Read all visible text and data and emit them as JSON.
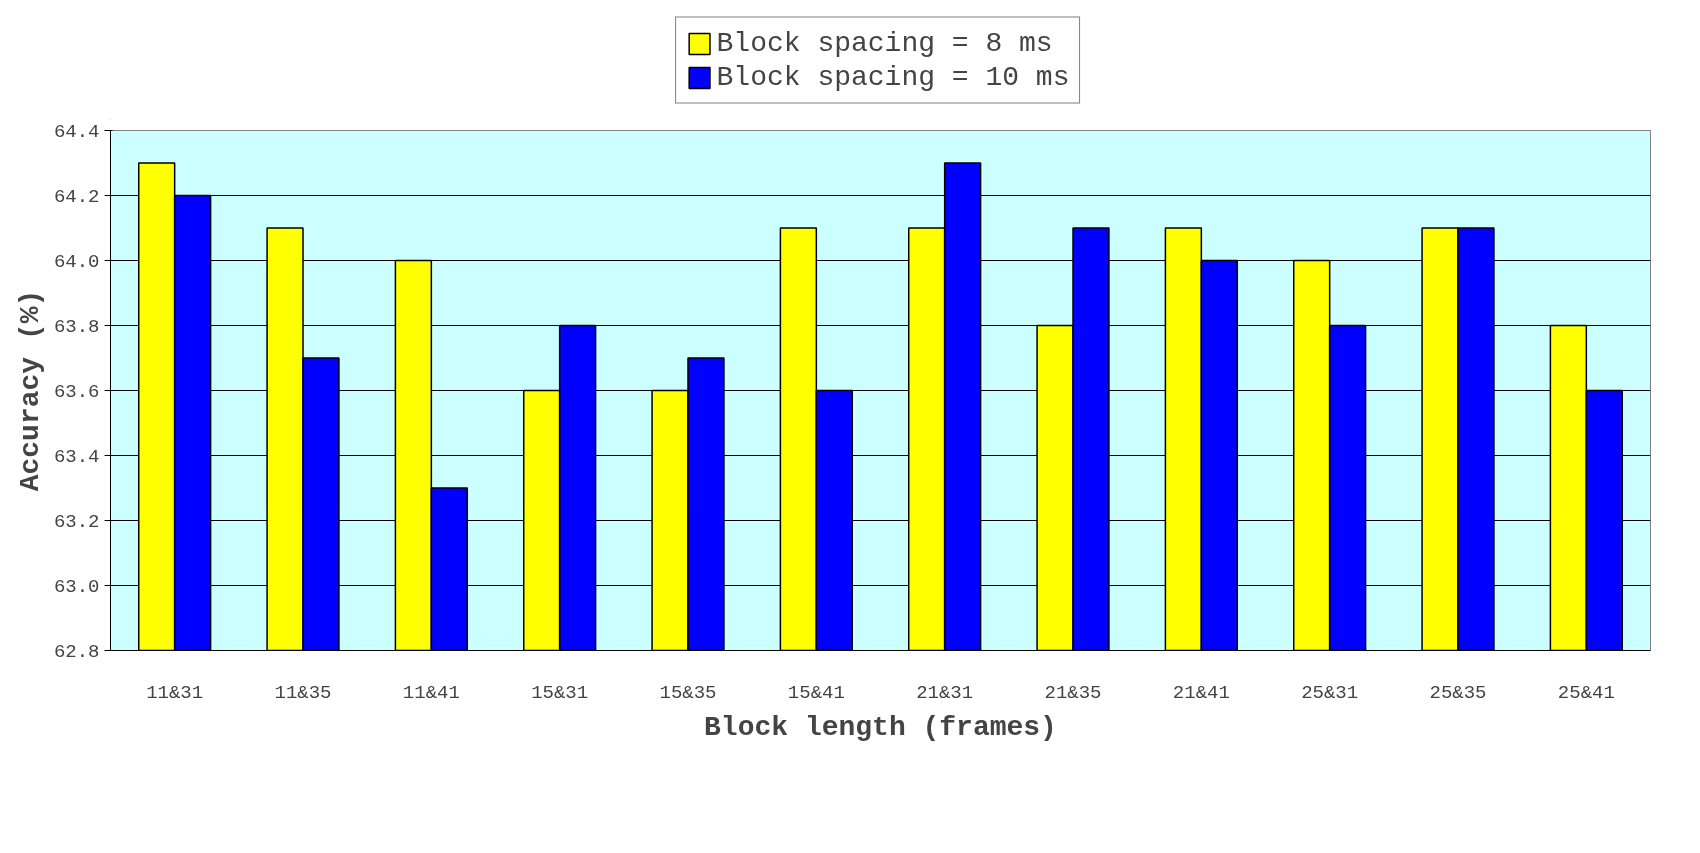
{
  "chart_data": {
    "type": "bar",
    "xlabel": "Block length (frames)",
    "ylabel": "Accuracy (%)",
    "categories": [
      "11&31",
      "11&35",
      "11&41",
      "15&31",
      "15&35",
      "15&41",
      "21&31",
      "21&35",
      "21&41",
      "25&31",
      "25&35",
      "25&41"
    ],
    "series": [
      {
        "name": "Block spacing = 8 ms",
        "color": "#ffff00",
        "values": [
          64.3,
          64.1,
          64.0,
          63.6,
          63.6,
          64.1,
          64.1,
          63.8,
          64.1,
          64.0,
          64.1,
          63.8
        ]
      },
      {
        "name": "Block spacing = 10 ms",
        "color": "#0000ff",
        "values": [
          64.2,
          63.7,
          63.3,
          63.8,
          63.7,
          63.6,
          64.3,
          64.1,
          64.0,
          63.8,
          64.1,
          63.6
        ]
      }
    ],
    "ylim": [
      62.8,
      64.4
    ],
    "yticks": [
      62.8,
      {
        "value": 63.0,
        "label": "63.0"
      },
      63.2,
      63.4,
      63.6,
      63.8,
      {
        "value": 64.0,
        "label": "64.0"
      },
      64.2,
      64.4
    ],
    "grid": "y",
    "legend": "top"
  }
}
